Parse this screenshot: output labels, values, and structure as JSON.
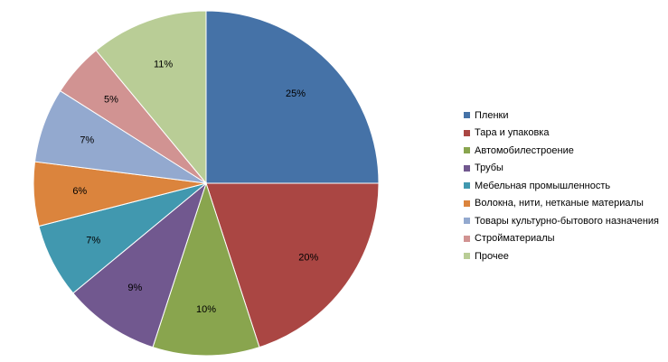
{
  "chart_data": {
    "type": "pie",
    "title": "",
    "categories": [
      "Пленки",
      "Тара и упаковка",
      "Автомобилестроение",
      "Трубы",
      "Мебельная промышленность",
      "Волокна, нити, нетканые материалы",
      "Товары культурно-бытового назначения",
      "Стройматериалы",
      "Прочее"
    ],
    "values": [
      25,
      20,
      10,
      9,
      7,
      6,
      7,
      5,
      11
    ],
    "labels": [
      "25%",
      "20%",
      "10%",
      "9%",
      "7%",
      "6%",
      "7%",
      "5%",
      "11%"
    ],
    "colors": [
      "#4572a7",
      "#aa4643",
      "#89a54e",
      "#71588f",
      "#4198af",
      "#db843d",
      "#93a9cf",
      "#d19392",
      "#b9cd96"
    ],
    "legend_position": "right",
    "start_angle": "12 o'clock",
    "direction": "clockwise"
  }
}
